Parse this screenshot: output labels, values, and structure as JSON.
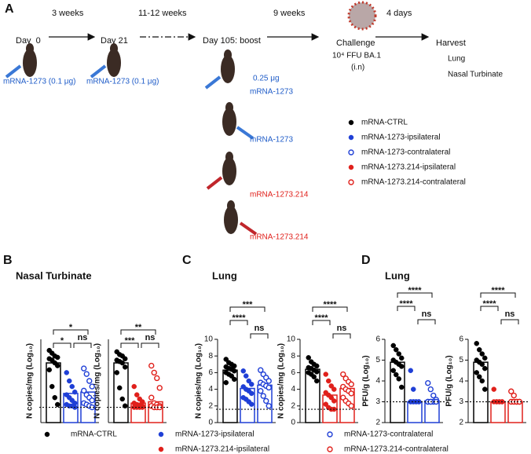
{
  "panel_labels": [
    "A",
    "B",
    "C",
    "D"
  ],
  "schematic": {
    "timeline": [
      "Day  0",
      "Day 21",
      "Day 105: boost"
    ],
    "intervals": [
      "3 weeks",
      "11-12 weeks",
      "9 weeks",
      "4 days"
    ],
    "challenge": [
      "Challenge",
      "10⁴ FFU BA.1",
      "(i.n)"
    ],
    "harvest": [
      "Harvest",
      "Lung",
      "Nasal Turbinate"
    ],
    "doses": [
      "mRNA-1273 (0.1 μg)",
      "mRNA-1273 (0.1 μg)",
      "0.25 μg",
      "mRNA-1273",
      "mRNA-1273",
      "mRNA-1273.214",
      "mRNA-1273.214"
    ]
  },
  "panel_titles": [
    "Nasal Turbinate",
    "Lung",
    "Lung"
  ],
  "chart_data": [
    {
      "type": "bar",
      "ylabel": "N copies/mg (Log₁₀)",
      "ylim": [
        0,
        6
      ],
      "threshold": 1.1,
      "comparisons": [
        "*",
        "*",
        "ns"
      ],
      "series": [
        {
          "name": "mRNA-CTRL",
          "color": "#000000",
          "marker": "filled",
          "values": [
            4.3
          ],
          "points": [
            5.2,
            5.0,
            4.8,
            4.7,
            4.6,
            4.5,
            4.3,
            4.1,
            3.8,
            2.6,
            1.8,
            1.3
          ]
        },
        {
          "name": "mRNA-1273-ipsilateral",
          "color": "#1f3fd6",
          "marker": "filled",
          "values": [
            2.1
          ],
          "points": [
            3.6,
            3.0,
            2.6,
            2.2,
            2.0,
            1.8,
            1.6,
            1.4,
            1.3,
            1.2,
            1.2,
            1.1
          ]
        },
        {
          "name": "mRNA-1273-contralateral",
          "color": "#1f3fd6",
          "marker": "open",
          "values": [
            2.2
          ],
          "points": [
            3.9,
            3.5,
            3.0,
            2.6,
            2.3,
            2.0,
            1.8,
            1.6,
            1.4,
            1.3,
            1.2,
            1.1
          ]
        }
      ]
    },
    {
      "type": "bar",
      "ylabel": "N copies/mg (Log₁₀)",
      "ylim": [
        0,
        6
      ],
      "threshold": 1.1,
      "comparisons": [
        "***",
        "**",
        "ns"
      ],
      "series": [
        {
          "name": "mRNA-CTRL",
          "color": "#000000",
          "marker": "filled",
          "values": [
            4.3
          ],
          "points": [
            5.1,
            4.9,
            4.8,
            4.6,
            4.5,
            4.4,
            4.3,
            4.0,
            3.6,
            2.5,
            1.7,
            1.2
          ]
        },
        {
          "name": "mRNA-1273.214-ipsilateral",
          "color": "#e0201b",
          "marker": "filled",
          "values": [
            1.4
          ],
          "points": [
            2.6,
            2.0,
            1.7,
            1.5,
            1.4,
            1.3,
            1.2,
            1.2,
            1.1,
            1.1,
            1.1,
            1.1
          ]
        },
        {
          "name": "mRNA-1273.214-contralateral",
          "color": "#e0201b",
          "marker": "open",
          "values": [
            1.5
          ],
          "points": [
            4.1,
            3.6,
            3.2,
            2.5,
            1.8,
            1.4,
            1.3,
            1.2,
            1.2,
            1.1,
            1.1,
            1.1
          ]
        }
      ]
    },
    {
      "type": "bar",
      "ylabel": "N copies/mg (Log₁₀)",
      "ylim": [
        0,
        10
      ],
      "yticks": [
        0,
        2,
        4,
        6,
        8,
        10
      ],
      "threshold": 1.6,
      "comparisons": [
        "****",
        "***",
        "ns"
      ],
      "series": [
        {
          "name": "mRNA-CTRL",
          "color": "#000000",
          "marker": "filled",
          "values": [
            6.3
          ],
          "points": [
            7.6,
            7.2,
            7.0,
            6.8,
            6.7,
            6.5,
            6.4,
            6.2,
            6.0,
            5.8,
            5.6,
            5.2,
            4.8
          ]
        },
        {
          "name": "mRNA-1273-ipsilateral",
          "color": "#1f3fd6",
          "marker": "filled",
          "values": [
            4.1
          ],
          "points": [
            6.2,
            5.6,
            5.0,
            4.6,
            4.3,
            4.0,
            3.8,
            3.5,
            3.0,
            2.8,
            2.5,
            2.2
          ]
        },
        {
          "name": "mRNA-1273-contralateral",
          "color": "#1f3fd6",
          "marker": "open",
          "values": [
            4.5
          ],
          "points": [
            6.3,
            5.8,
            5.4,
            5.0,
            4.8,
            4.6,
            4.4,
            4.2,
            3.8,
            3.2,
            2.6,
            2.0
          ]
        }
      ]
    },
    {
      "type": "bar",
      "ylabel": "N copies/mg (Log₁₀)",
      "ylim": [
        0,
        10
      ],
      "yticks": [
        0,
        2,
        4,
        6,
        8,
        10
      ],
      "threshold": 1.6,
      "comparisons": [
        "****",
        "****",
        "ns"
      ],
      "series": [
        {
          "name": "mRNA-CTRL",
          "color": "#000000",
          "marker": "filled",
          "values": [
            6.4
          ],
          "points": [
            7.8,
            7.3,
            7.0,
            6.8,
            6.6,
            6.5,
            6.3,
            6.1,
            6.0,
            5.8,
            5.5,
            5.0
          ]
        },
        {
          "name": "mRNA-1273.214-ipsilateral",
          "color": "#e0201b",
          "marker": "filled",
          "values": [
            3.3
          ],
          "points": [
            5.8,
            5.0,
            4.4,
            4.0,
            3.6,
            3.3,
            3.0,
            2.6,
            2.2,
            1.8,
            1.6,
            1.6
          ]
        },
        {
          "name": "mRNA-1273.214-contralateral",
          "color": "#e0201b",
          "marker": "open",
          "values": [
            4.1
          ],
          "points": [
            5.8,
            5.3,
            4.9,
            4.6,
            4.3,
            4.0,
            3.8,
            3.5,
            3.0,
            2.6,
            2.3,
            2.0
          ]
        }
      ]
    },
    {
      "type": "bar",
      "ylabel": "PFU/g (Log₁₀)",
      "ylim": [
        2,
        6
      ],
      "yticks": [
        2,
        3,
        4,
        5,
        6
      ],
      "threshold": 3,
      "comparisons": [
        "****",
        "****",
        "ns"
      ],
      "series": [
        {
          "name": "mRNA-CTRL",
          "color": "#000000",
          "marker": "filled",
          "values": [
            4.9
          ],
          "points": [
            5.7,
            5.5,
            5.3,
            5.1,
            5.0,
            4.9,
            4.8,
            4.7,
            4.5,
            4.3,
            4.1,
            3.7
          ]
        },
        {
          "name": "mRNA-1273-ipsilateral",
          "color": "#1f3fd6",
          "marker": "filled",
          "values": [
            3.0
          ],
          "points": [
            4.5,
            3.6,
            3.0,
            3.0,
            3.0,
            3.0,
            3.0,
            3.0,
            3.0,
            3.0
          ]
        },
        {
          "name": "mRNA-1273-contralateral",
          "color": "#1f3fd6",
          "marker": "open",
          "values": [
            3.05
          ],
          "points": [
            3.9,
            3.6,
            3.3,
            3.1,
            3.0,
            3.0,
            3.0,
            3.0,
            3.0,
            3.0
          ]
        }
      ]
    },
    {
      "type": "bar",
      "ylabel": "PFU/g (Log₁₀)",
      "ylim": [
        2,
        6
      ],
      "yticks": [
        2,
        3,
        4,
        5,
        6
      ],
      "threshold": 3,
      "comparisons": [
        "****",
        "****",
        "ns"
      ],
      "series": [
        {
          "name": "mRNA-CTRL",
          "color": "#000000",
          "marker": "filled",
          "values": [
            4.9
          ],
          "points": [
            5.8,
            5.5,
            5.3,
            5.1,
            5.0,
            4.9,
            4.8,
            4.6,
            4.4,
            4.2,
            4.0,
            3.6
          ]
        },
        {
          "name": "mRNA-1273.214-ipsilateral",
          "color": "#e0201b",
          "marker": "filled",
          "values": [
            3.0
          ],
          "points": [
            3.6,
            3.0,
            3.0,
            3.0,
            3.0,
            3.0,
            3.0,
            3.0
          ]
        },
        {
          "name": "mRNA-1273.214-contralateral",
          "color": "#e0201b",
          "marker": "open",
          "values": [
            3.0
          ],
          "points": [
            3.5,
            3.3,
            3.0,
            3.0,
            3.0,
            3.0,
            3.0,
            3.0
          ]
        }
      ]
    }
  ]
}
